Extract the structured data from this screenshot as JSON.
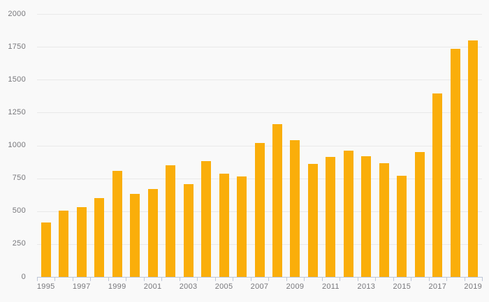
{
  "chart_data": {
    "type": "bar",
    "title": "",
    "xlabel": "",
    "ylabel": "",
    "categories": [
      1995,
      1996,
      1997,
      1998,
      1999,
      2000,
      2001,
      2002,
      2003,
      2004,
      2005,
      2006,
      2007,
      2008,
      2009,
      2010,
      2011,
      2012,
      2013,
      2014,
      2015,
      2016,
      2017,
      2018,
      2019
    ],
    "values": [
      415,
      505,
      530,
      600,
      805,
      630,
      670,
      850,
      705,
      880,
      785,
      765,
      1020,
      1160,
      1040,
      860,
      915,
      960,
      920,
      865,
      770,
      950,
      1395,
      1735,
      1800
    ],
    "ylim": [
      0,
      2000
    ],
    "ytick_step": 250,
    "x_tick_labels": [
      "1995",
      "1997",
      "1999",
      "2001",
      "2003",
      "2005",
      "2007",
      "2009",
      "2011",
      "2013",
      "2015",
      "2017",
      "2019"
    ],
    "x_label_every": 2,
    "grid": "horizontal",
    "legend": null
  },
  "colors": {
    "bar": "#faae0a",
    "background": "#f9f9f9",
    "gridline": "#e9e9e9",
    "axis": "#bdc6d8",
    "label": "#77777b"
  }
}
